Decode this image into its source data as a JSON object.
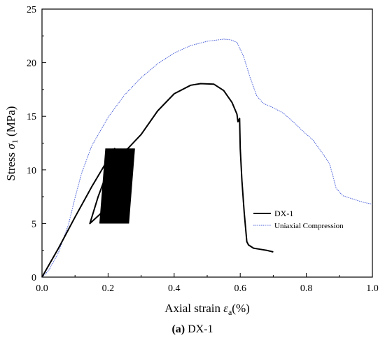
{
  "chart_data": {
    "type": "line",
    "xlabel_prefix": "Axial strain ",
    "xlabel_symbol": "ε",
    "xlabel_sub": "a",
    "xlabel_suffix": "(%)",
    "ylabel_prefix": "Stress ",
    "ylabel_symbol": "σ",
    "ylabel_sub": "1",
    "ylabel_suffix": " (MPa)",
    "xlim": [
      0.0,
      1.0
    ],
    "ylim": [
      0,
      25
    ],
    "x_ticks": [
      "0.0",
      "0.2",
      "0.4",
      "0.6",
      "0.8",
      "1.0"
    ],
    "y_ticks": [
      "0",
      "5",
      "10",
      "15",
      "20",
      "25"
    ],
    "grid": false,
    "legend_position": "lower-right",
    "series": [
      {
        "name": "DX-1",
        "color": "#000000",
        "style": "solid",
        "monotonic_envelope": [
          [
            0.0,
            0.0
          ],
          [
            0.05,
            2.7
          ],
          [
            0.1,
            5.6
          ],
          [
            0.15,
            8.4
          ],
          [
            0.2,
            11.0
          ],
          [
            0.22,
            12.0
          ],
          [
            0.21,
            10.0
          ],
          [
            0.2,
            8.0
          ],
          [
            0.18,
            6.0
          ],
          [
            0.145,
            5.0
          ],
          [
            0.17,
            7.5
          ],
          [
            0.2,
            10.0
          ],
          [
            0.22,
            10.8
          ],
          [
            0.24,
            11.5
          ],
          [
            0.26,
            12.0
          ],
          [
            0.3,
            13.3
          ],
          [
            0.35,
            15.5
          ],
          [
            0.4,
            17.1
          ],
          [
            0.45,
            17.9
          ],
          [
            0.48,
            18.05
          ],
          [
            0.52,
            18.0
          ],
          [
            0.55,
            17.4
          ],
          [
            0.575,
            16.3
          ],
          [
            0.59,
            15.2
          ],
          [
            0.593,
            14.5
          ],
          [
            0.598,
            14.8
          ],
          [
            0.6,
            12.0
          ],
          [
            0.605,
            9.0
          ],
          [
            0.612,
            6.0
          ],
          [
            0.62,
            3.3
          ],
          [
            0.625,
            3.0
          ],
          [
            0.64,
            2.7
          ],
          [
            0.66,
            2.6
          ],
          [
            0.68,
            2.5
          ],
          [
            0.7,
            2.35
          ]
        ],
        "cyclic_loop_region": {
          "x_start": 0.175,
          "x_end": 0.28,
          "y_min": 5.0,
          "y_max": 12.0
        }
      },
      {
        "name": "Uniaxial Compression",
        "color": "#4a5fd8",
        "style": "dotted",
        "points": [
          [
            0.0,
            0.0
          ],
          [
            0.02,
            0.6
          ],
          [
            0.05,
            2.3
          ],
          [
            0.08,
            4.9
          ],
          [
            0.1,
            7.4
          ],
          [
            0.12,
            9.7
          ],
          [
            0.15,
            12.2
          ],
          [
            0.2,
            14.9
          ],
          [
            0.25,
            17.0
          ],
          [
            0.3,
            18.6
          ],
          [
            0.35,
            19.9
          ],
          [
            0.4,
            20.9
          ],
          [
            0.45,
            21.6
          ],
          [
            0.5,
            22.0
          ],
          [
            0.55,
            22.2
          ],
          [
            0.57,
            22.15
          ],
          [
            0.59,
            21.9
          ],
          [
            0.61,
            20.6
          ],
          [
            0.63,
            18.6
          ],
          [
            0.65,
            16.9
          ],
          [
            0.67,
            16.2
          ],
          [
            0.7,
            15.8
          ],
          [
            0.73,
            15.3
          ],
          [
            0.76,
            14.5
          ],
          [
            0.79,
            13.6
          ],
          [
            0.82,
            12.8
          ],
          [
            0.85,
            11.5
          ],
          [
            0.87,
            10.6
          ],
          [
            0.88,
            9.5
          ],
          [
            0.89,
            8.3
          ],
          [
            0.91,
            7.6
          ],
          [
            0.94,
            7.3
          ],
          [
            0.97,
            7.0
          ],
          [
            1.0,
            6.8
          ]
        ]
      }
    ]
  },
  "caption": {
    "label": "(a)",
    "text": " DX-1"
  }
}
